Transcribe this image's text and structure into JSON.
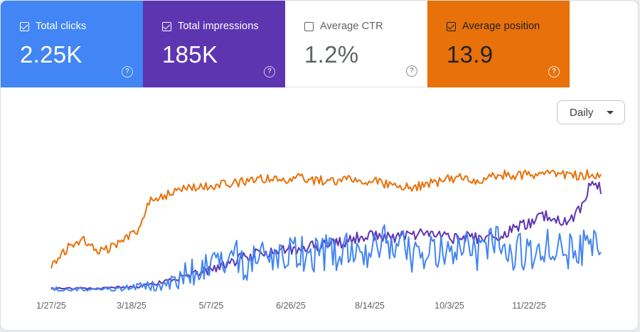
{
  "metrics": [
    {
      "label": "Total clicks",
      "value": "2.25K",
      "checked": true,
      "color": "#4285f4",
      "icon": "help-icon"
    },
    {
      "label": "Total impressions",
      "value": "185K",
      "checked": true,
      "color": "#5e35b1",
      "icon": "help-icon"
    },
    {
      "label": "Average CTR",
      "value": "1.2%",
      "checked": false,
      "color": "#ffffff",
      "icon": "help-icon"
    },
    {
      "label": "Average position",
      "value": "13.9",
      "checked": true,
      "color": "#e8710a",
      "icon": "help-icon"
    }
  ],
  "help_glyph": "?",
  "period_select": {
    "selected": "Daily",
    "icon": "caret-down-icon"
  },
  "chart_data": {
    "type": "line",
    "x_tick_labels": [
      "1/27/25",
      "3/18/25",
      "5/7/25",
      "6/26/25",
      "8/14/25",
      "10/3/25",
      "11/22/25"
    ],
    "x_range": [
      "2025-01-27",
      "2026-01-03"
    ],
    "y_axis_shown": false,
    "grid": false,
    "series": [
      {
        "name": "Total clicks",
        "color": "#4285f4",
        "values": [
          1,
          1,
          1,
          1,
          1,
          2,
          1,
          2,
          2,
          3,
          4,
          4,
          6,
          9,
          17,
          14,
          19,
          22,
          24,
          28,
          20,
          28,
          25,
          22,
          27,
          35,
          29,
          31,
          33,
          32,
          32,
          34,
          28,
          36,
          41,
          31,
          35,
          30,
          34,
          37,
          30,
          34,
          36,
          29,
          31,
          38,
          38,
          33,
          33,
          32,
          37,
          39,
          36,
          33,
          37,
          35,
          38
        ]
      },
      {
        "name": "Total impressions",
        "color": "#5e35b1",
        "values": [
          2,
          2,
          2,
          2,
          2,
          2,
          2,
          3,
          3,
          3,
          5,
          7,
          8,
          10,
          13,
          15,
          17,
          20,
          23,
          26,
          28,
          32,
          31,
          33,
          35,
          36,
          37,
          38,
          39,
          40,
          41,
          44,
          47,
          45,
          45,
          44,
          47,
          48,
          47,
          45,
          46,
          44,
          45,
          44,
          45,
          46,
          48,
          52,
          55,
          58,
          62,
          63,
          59,
          61,
          70,
          93,
          86
        ]
      },
      {
        "name": "Average position",
        "color": "#e8710a",
        "values": [
          50,
          55,
          62,
          65,
          63,
          58,
          60,
          63,
          68,
          72,
          90,
          92,
          94,
          96,
          97,
          98,
          99,
          100,
          100,
          101,
          102,
          103,
          104,
          103,
          103,
          104,
          103,
          102,
          103,
          102,
          103,
          103,
          101,
          102,
          100,
          99,
          99,
          98,
          100,
          101,
          103,
          104,
          104,
          103,
          103,
          105,
          106,
          106,
          106,
          106,
          106,
          106,
          106,
          106,
          105,
          107,
          106
        ]
      }
    ]
  }
}
